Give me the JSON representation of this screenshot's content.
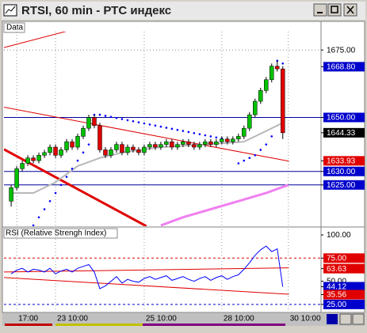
{
  "window": {
    "title": "RTSI, 60 min - РТС индекс"
  },
  "chart_data": [
    {
      "type": "candlestick",
      "label": "Data",
      "x": [
        0,
        1,
        2,
        3,
        4,
        5,
        6,
        7,
        8,
        9,
        10,
        11,
        12,
        13,
        14,
        15,
        16,
        17,
        18,
        19,
        20,
        21,
        22,
        23,
        24,
        25,
        26,
        27,
        28,
        29,
        30,
        31,
        32,
        33,
        34,
        35,
        36,
        37,
        38,
        39,
        40,
        41,
        42,
        43,
        44,
        45,
        46,
        47,
        48,
        49
      ],
      "open": [
        1619,
        1624,
        1631,
        1633,
        1635,
        1634,
        1636,
        1637,
        1639,
        1636,
        1638,
        1641,
        1639,
        1643,
        1646,
        1650,
        1647,
        1638,
        1636,
        1638,
        1640,
        1637,
        1639,
        1638,
        1637,
        1639,
        1640,
        1639,
        1640,
        1641,
        1639,
        1640,
        1641,
        1640,
        1639,
        1640,
        1641,
        1640,
        1641,
        1642,
        1641,
        1642,
        1643,
        1646,
        1651,
        1656,
        1660,
        1664,
        1669,
        1668
      ],
      "high": [
        1625,
        1632,
        1634,
        1636,
        1636,
        1637,
        1638,
        1640,
        1640,
        1639,
        1642,
        1642,
        1644,
        1647,
        1651,
        1651,
        1648,
        1639,
        1639,
        1641,
        1641,
        1640,
        1640,
        1639,
        1640,
        1641,
        1641,
        1641,
        1642,
        1642,
        1641,
        1642,
        1642,
        1641,
        1641,
        1642,
        1642,
        1642,
        1643,
        1643,
        1643,
        1644,
        1647,
        1652,
        1657,
        1661,
        1665,
        1670,
        1671,
        1669
      ],
      "low": [
        1617,
        1623,
        1630,
        1632,
        1633,
        1633,
        1635,
        1636,
        1635,
        1635,
        1637,
        1638,
        1638,
        1642,
        1645,
        1646,
        1637,
        1635,
        1635,
        1637,
        1636,
        1636,
        1637,
        1636,
        1636,
        1638,
        1638,
        1638,
        1639,
        1638,
        1638,
        1639,
        1639,
        1638,
        1638,
        1639,
        1639,
        1639,
        1640,
        1640,
        1640,
        1641,
        1642,
        1645,
        1650,
        1655,
        1659,
        1663,
        1667,
        1642
      ],
      "close": [
        1624,
        1631,
        1633,
        1635,
        1634,
        1636,
        1637,
        1639,
        1636,
        1638,
        1641,
        1639,
        1643,
        1646,
        1650,
        1647,
        1638,
        1636,
        1638,
        1640,
        1637,
        1639,
        1638,
        1637,
        1639,
        1640,
        1639,
        1640,
        1641,
        1639,
        1640,
        1641,
        1640,
        1639,
        1640,
        1641,
        1640,
        1641,
        1642,
        1641,
        1642,
        1643,
        1646,
        1651,
        1656,
        1660,
        1664,
        1669,
        1668,
        1644.33
      ],
      "up_color": "#00c000",
      "down_color": "#e00000",
      "series": [
        {
          "style": "line",
          "color": "#b8b8b8",
          "width": 2,
          "x": [
            0,
            4,
            8,
            12,
            16,
            20,
            27,
            35,
            42,
            46,
            49
          ],
          "values": [
            1622,
            1622,
            1626,
            1632,
            1635,
            1637,
            1639,
            1640,
            1641,
            1645,
            1648
          ]
        },
        {
          "style": "line",
          "color": "#f080f0",
          "width": 3,
          "x": [
            27,
            31,
            36,
            41,
            46,
            50
          ],
          "values": [
            1610,
            1613,
            1616,
            1619,
            1622,
            1625
          ]
        },
        {
          "style": "dots",
          "color": "#0000ff",
          "values": [
            null,
            null,
            null,
            null,
            1610,
            1613,
            1616,
            1619,
            1622,
            1625,
            1628,
            1631,
            1634,
            1637,
            1640,
            1651,
            1651,
            1650.6,
            1650.2,
            1649.8,
            1649.4,
            1649,
            1648.6,
            1648.2,
            1647.8,
            1647.4,
            1647,
            1646.6,
            1646.2,
            1645.8,
            1645.4,
            1645,
            1644.6,
            1644.2,
            1643.8,
            1643.4,
            1643,
            1642.6,
            1642.2,
            1641.8,
            1641.4,
            1633,
            1634,
            1635,
            1636,
            1638,
            1640,
            1643,
            1671,
            1670
          ]
        }
      ],
      "trend_lines": [
        {
          "x": [
            -1.3,
            15.1
          ],
          "y": [
            1675.9,
            1684.7
          ],
          "color": "#e00000",
          "width": 1
        },
        {
          "x": [
            -1.3,
            50.1
          ],
          "y": [
            1653.8,
            1633.8
          ],
          "color": "#e00000",
          "width": 1
        },
        {
          "x": [
            -1.3,
            24.4
          ],
          "y": [
            1638.2,
            1609.7
          ],
          "color": "#e00000",
          "width": 3
        }
      ],
      "xlim": [
        -1.3,
        55.9
      ],
      "ylim": [
        1609.7,
        1681.8
      ],
      "xticks": [
        {
          "value": 1,
          "label": "17:00"
        },
        {
          "value": 8,
          "label": "23 10:00"
        },
        {
          "value": 24,
          "label": "25 10:00"
        },
        {
          "value": 38,
          "label": "28 10:00"
        },
        {
          "value": 50,
          "label": "30 10:00"
        }
      ],
      "yticks": [
        {
          "value": 1675,
          "label": "1675.00",
          "grid": "#888888"
        },
        {
          "value": 1668.8,
          "label": "1668.80",
          "box": "#0000cc"
        },
        {
          "value": 1650,
          "label": "1650.00",
          "box": "#0000cc",
          "line": "#000099"
        },
        {
          "value": 1644.33,
          "label": "1644.33",
          "box": "#000000"
        },
        {
          "value": 1633.93,
          "label": "1633.93",
          "box": "#e00000"
        },
        {
          "value": 1630,
          "label": "1630.00",
          "box": "#0000cc",
          "line": "#000099"
        },
        {
          "value": 1625,
          "label": "1625.00",
          "box": "#0000cc",
          "line": "#000099"
        }
      ]
    },
    {
      "type": "line",
      "label": "RSI (Relative Strengh Index)",
      "series": [
        {
          "color": "#0000ff",
          "values": [
            58,
            62,
            64,
            60,
            63,
            62,
            60,
            64,
            58,
            61,
            63,
            60,
            64,
            66,
            68,
            60,
            42,
            45,
            50,
            55,
            48,
            52,
            50,
            49,
            53,
            55,
            52,
            54,
            56,
            51,
            53,
            55,
            52,
            50,
            53,
            55,
            51,
            54,
            56,
            52,
            55,
            57,
            63,
            70,
            78,
            84,
            88,
            82,
            85,
            44.12
          ]
        }
      ],
      "trend_lines": [
        {
          "x": [
            -1.3,
            50.1
          ],
          "y": [
            60,
            64.5
          ],
          "color": "#e00000",
          "width": 1
        },
        {
          "x": [
            -1.3,
            50.1
          ],
          "y": [
            54,
            36
          ],
          "color": "#e00000",
          "width": 1
        }
      ],
      "ylim": [
        17.2,
        106
      ],
      "yticks": [
        {
          "value": 100,
          "label": "100.00"
        },
        {
          "value": 75,
          "label": "75.00",
          "box": "#e00000",
          "dash": "#e00000"
        },
        {
          "value": 63.63,
          "label": "63.63",
          "box": "#e00000"
        },
        {
          "value": 50,
          "label": "50.00"
        },
        {
          "value": 44.12,
          "label": "44.12",
          "box": "#0000cc"
        },
        {
          "value": 35.56,
          "label": "35.56",
          "box": "#e00000"
        },
        {
          "value": 25,
          "label": "25.00",
          "box": "#0000cc",
          "dash": "#0000cc"
        }
      ]
    }
  ]
}
